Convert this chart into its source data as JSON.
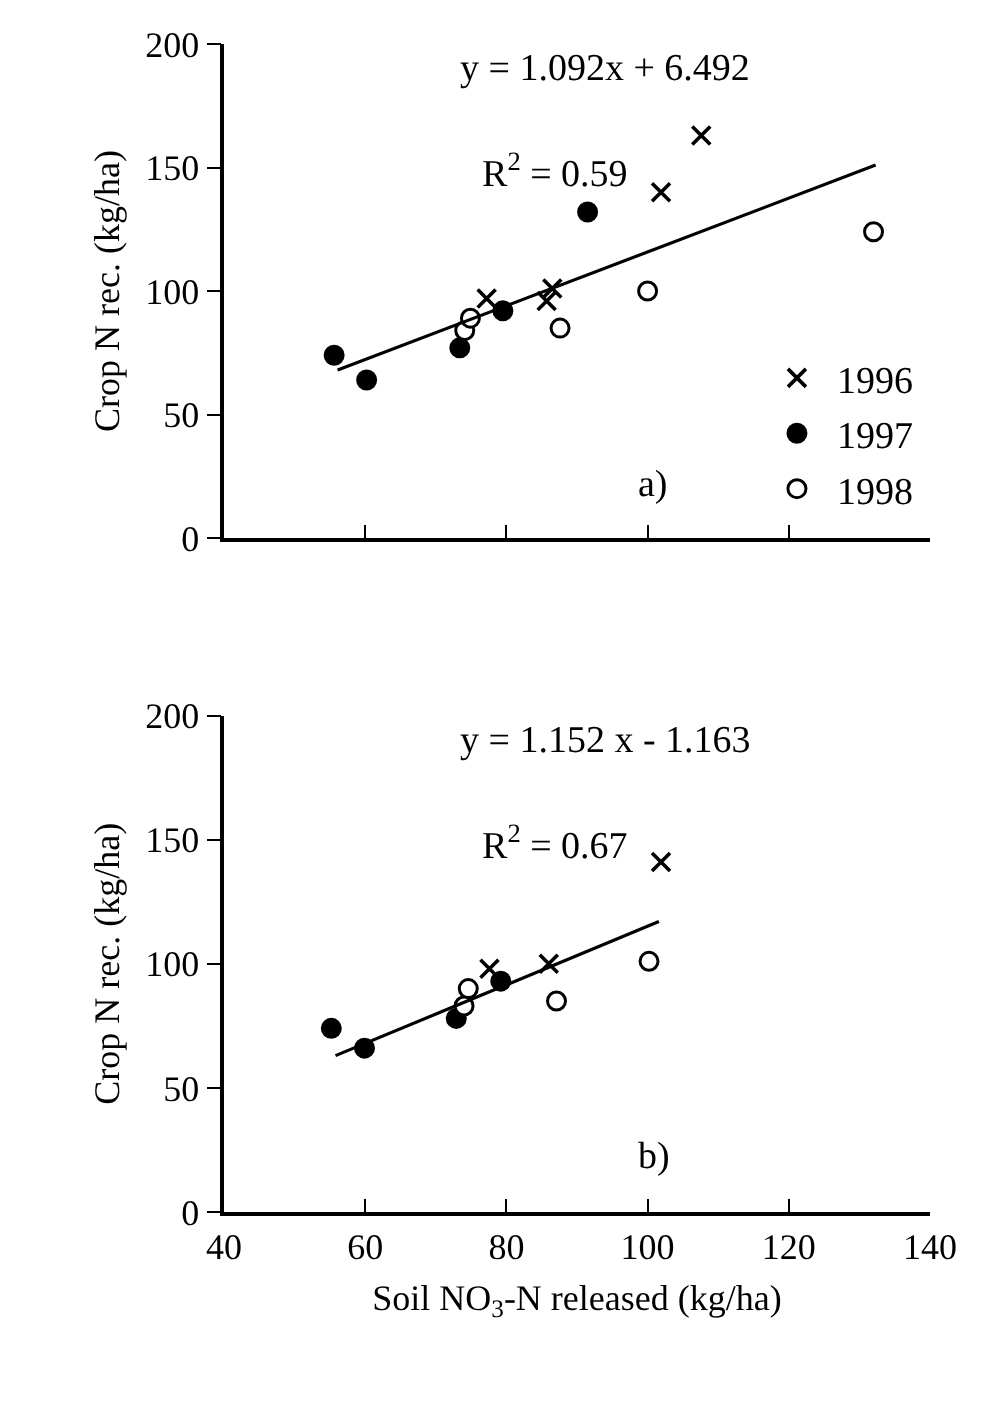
{
  "chart_data": [
    {
      "type": "scatter",
      "ylabel": "Crop N rec. (kg/ha)",
      "xlim": [
        40,
        140
      ],
      "xticks": [
        40,
        60,
        80,
        100,
        120,
        140
      ],
      "ylim": [
        0,
        200
      ],
      "yticks": [
        0,
        50,
        100,
        150,
        200
      ],
      "tick_labels": "y",
      "legend": "bottom right",
      "grid": false,
      "annotations": [
        "y = 1.092x + 6.492",
        "R$^{2}$ = 0.59",
        "a)"
      ],
      "series": [
        {
          "name": "1996",
          "color": "#000000",
          "marker": "cross",
          "x": [
            107.6,
            101.9,
            77.2,
            86.5,
            85.7
          ],
          "values": [
            163,
            140,
            97,
            101,
            96
          ]
        },
        {
          "name": "1997",
          "color": "#000000",
          "marker": "circle",
          "x": [
            55.6,
            60.2,
            73.4,
            79.5,
            91.5
          ],
          "values": [
            74,
            64,
            77,
            92,
            132
          ]
        },
        {
          "name": "1998",
          "color": "#ffffff",
          "marker": "circle",
          "x": [
            74.1,
            74.9,
            87.6,
            100,
            132
          ],
          "values": [
            84,
            89,
            85,
            100,
            124
          ]
        },
        {
          "type": "line",
          "color": "#000000",
          "marker": "none",
          "x": [
            56.1,
            132.3
          ],
          "values": [
            68,
            151
          ]
        }
      ]
    },
    {
      "type": "scatter",
      "ylabel": "Crop N rec. (kg/ha)",
      "xlabel": "Soil NO$_{3}$-N released (kg/ha)",
      "xlim": [
        40,
        140
      ],
      "xticks": [
        40,
        60,
        80,
        100,
        120,
        140
      ],
      "ylim": [
        0,
        200
      ],
      "yticks": [
        0,
        50,
        100,
        150,
        200
      ],
      "grid": false,
      "annotations": [
        "y = 1.152 x - 1.163",
        "R$^{2}$ = 0.67",
        "b)"
      ],
      "series": [
        {
          "color": "#000000",
          "marker": "cross",
          "x": [
            101.9,
            77.6,
            86
          ],
          "values": [
            141,
            98,
            100
          ]
        },
        {
          "color": "#000000",
          "marker": "circle",
          "x": [
            55.2,
            59.9,
            72.9,
            79.2
          ],
          "values": [
            74,
            66,
            78,
            93
          ]
        },
        {
          "color": "#ffffff",
          "marker": "circle",
          "x": [
            74.6,
            74,
            87.1,
            100.2
          ],
          "values": [
            90,
            83,
            85,
            101
          ]
        },
        {
          "type": "line",
          "color": "#000000",
          "marker": "none",
          "x": [
            55.8,
            101.6
          ],
          "values": [
            63,
            117
          ]
        }
      ]
    }
  ]
}
